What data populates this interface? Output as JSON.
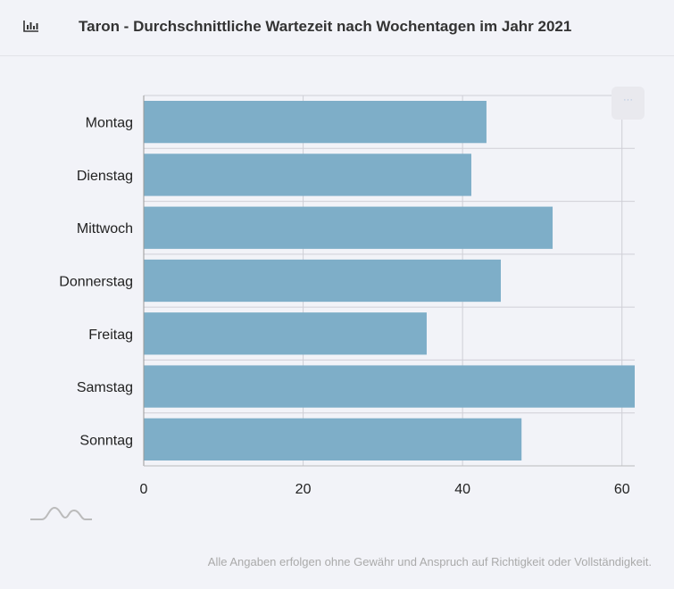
{
  "header": {
    "title": "Taron - Durchschnittliche Wartezeit nach Wochentagen im Jahr 2021",
    "icon": "bar-chart-icon"
  },
  "menu_button": {
    "label": "···"
  },
  "footer": {
    "disclaimer": "Alle Angaben erfolgen ohne Gewähr und Anspruch auf Richtigkeit oder Vollständigkeit."
  },
  "colors": {
    "bar": "#7eaec8",
    "grid": "#cfcfd6"
  },
  "chart_data": {
    "type": "bar",
    "orientation": "horizontal",
    "title": "Taron - Durchschnittliche Wartezeit nach Wochentagen im Jahr 2021",
    "xlabel": "",
    "ylabel": "",
    "categories": [
      "Montag",
      "Dienstag",
      "Mittwoch",
      "Donnerstag",
      "Freitag",
      "Samstag",
      "Sonntag"
    ],
    "values": [
      43.0,
      41.1,
      51.3,
      44.8,
      35.5,
      61.6,
      47.4
    ],
    "xlim": [
      0,
      61.6
    ],
    "xticks": [
      "0",
      "20",
      "40",
      "60"
    ],
    "xtick_values": [
      0,
      20,
      40,
      60
    ],
    "grid": true
  }
}
